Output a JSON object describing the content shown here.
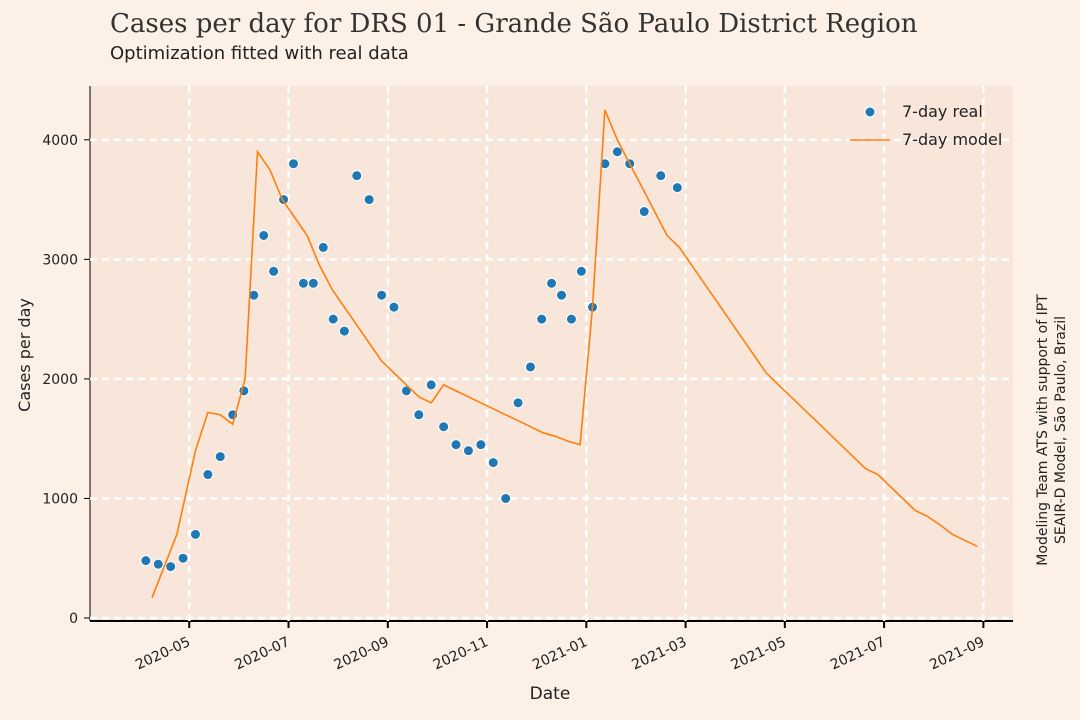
{
  "chart_data": {
    "type": "scatter-line",
    "title": "Cases per day for DRS 01 - Grande São Paulo District Region",
    "subtitle": "Optimization fitted with real data",
    "xlabel": "Date",
    "ylabel": "Cases per day",
    "side_note": [
      "Modeling Team ATS with support of IPT",
      "SEAIR-D Model, São Paulo, Brazil"
    ],
    "xlim": [
      "2020-03",
      "2021-10"
    ],
    "xticks": [
      "2020-05",
      "2020-07",
      "2020-09",
      "2020-11",
      "2021-01",
      "2021-03",
      "2021-05",
      "2021-07",
      "2021-09"
    ],
    "ylim": [
      -25,
      4450
    ],
    "yticks": [
      0,
      1000,
      2000,
      3000,
      4000
    ],
    "grid": true,
    "legend": "upper right",
    "series": [
      {
        "name": "7-day real",
        "kind": "scatter",
        "color": "#1f77b4",
        "x": [
          "2020-04",
          "2020-04",
          "2020-04",
          "2020-04",
          "2020-05",
          "2020-05",
          "2020-05",
          "2020-05",
          "2020-06",
          "2020-06",
          "2020-06",
          "2020-06",
          "2020-06",
          "2020-07",
          "2020-07",
          "2020-07",
          "2020-07",
          "2020-07",
          "2020-08",
          "2020-08",
          "2020-08",
          "2020-08",
          "2020-09",
          "2020-09",
          "2020-09",
          "2020-09",
          "2020-10",
          "2020-10",
          "2020-10",
          "2020-10",
          "2020-11",
          "2020-11",
          "2020-11",
          "2020-11",
          "2020-12",
          "2020-12",
          "2020-12",
          "2020-12",
          "2020-12",
          "2021-01",
          "2021-01",
          "2021-01",
          "2021-01",
          "2021-02",
          "2021-02",
          "2021-02"
        ],
        "values": [
          480,
          450,
          430,
          500,
          700,
          1200,
          1350,
          1700,
          1900,
          2700,
          3200,
          2900,
          3500,
          3800,
          2800,
          2800,
          3100,
          2500,
          2400,
          3700,
          3500,
          2700,
          2600,
          1900,
          1700,
          1950,
          1600,
          1450,
          1400,
          1450,
          1300,
          1000,
          1800,
          2100,
          2500,
          2800,
          2700,
          2500,
          2900,
          2600,
          3800,
          3900,
          3800,
          3400,
          3700,
          3600
        ]
      },
      {
        "name": "7-day model",
        "kind": "line",
        "color": "#ff7f0e",
        "x": [
          "2020-04",
          "2020-04",
          "2020-05",
          "2020-05",
          "2020-05",
          "2020-05",
          "2020-06",
          "2020-06",
          "2020-06",
          "2020-06",
          "2020-07",
          "2020-07",
          "2020-07",
          "2020-07",
          "2020-08",
          "2020-08",
          "2020-08",
          "2020-08",
          "2020-09",
          "2020-09",
          "2020-09",
          "2020-09",
          "2020-10",
          "2020-10",
          "2020-10",
          "2020-10",
          "2020-11",
          "2020-11",
          "2020-11",
          "2020-11",
          "2020-12",
          "2020-12",
          "2020-12",
          "2020-12",
          "2021-01",
          "2021-01",
          "2021-01",
          "2021-01",
          "2021-02",
          "2021-02",
          "2021-02",
          "2021-02",
          "2021-03",
          "2021-03",
          "2021-03",
          "2021-03",
          "2021-04",
          "2021-04",
          "2021-04",
          "2021-04",
          "2021-05",
          "2021-05",
          "2021-05",
          "2021-05",
          "2021-06",
          "2021-06",
          "2021-06",
          "2021-06",
          "2021-07",
          "2021-07",
          "2021-07",
          "2021-07",
          "2021-08",
          "2021-08",
          "2021-08",
          "2021-08"
        ],
        "values": [
          170,
          700,
          1400,
          1720,
          1700,
          1620,
          2000,
          3900,
          3750,
          3500,
          3350,
          3200,
          2950,
          2750,
          2600,
          2450,
          2300,
          2150,
          2050,
          1950,
          1850,
          1800,
          1950,
          1900,
          1850,
          1800,
          1750,
          1700,
          1650,
          1600,
          1550,
          1520,
          1480,
          1450,
          2600,
          4250,
          4000,
          3800,
          3600,
          3400,
          3200,
          3100,
          2950,
          2800,
          2650,
          2500,
          2350,
          2200,
          2050,
          1950,
          1850,
          1750,
          1650,
          1550,
          1450,
          1350,
          1250,
          1200,
          1100,
          1000,
          900,
          850,
          780,
          700,
          650,
          600
        ]
      }
    ]
  }
}
